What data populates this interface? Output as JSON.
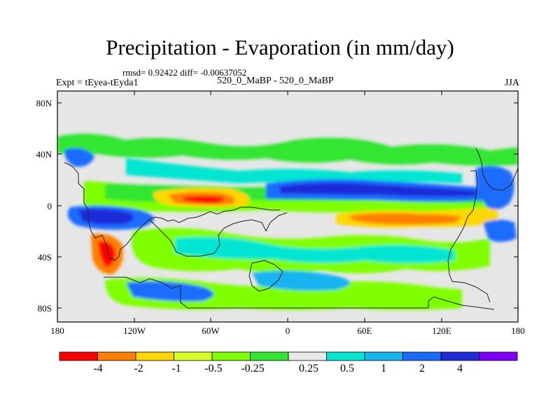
{
  "map": {
    "title": "Precipitation - Evaporation (in mm/day)",
    "stats": "rmsd= 0.92422 diff= -0.00637052",
    "experiment": "Expt = tEyea-tEyda1",
    "comparison": "520_0_MaBP - 520_0_MaBP",
    "season": "JJA",
    "lat_labels": [
      "80N",
      "40N",
      "0",
      "40S",
      "80S"
    ],
    "lon_labels": [
      "180",
      "120W",
      "60W",
      "0",
      "60E",
      "120E",
      "180"
    ]
  },
  "colorbar": {
    "labels": [
      "-4",
      "-2",
      "-1",
      "-0.5",
      "-0.25",
      "0.25",
      "0.5",
      "1",
      "2",
      "4"
    ],
    "colors": [
      "#ff0000",
      "#ff7f00",
      "#ffd700",
      "#d7ff2a",
      "#7fff00",
      "#33e633",
      "#e8e8e8",
      "#00e6d2",
      "#18b4f0",
      "#1a6cff",
      "#1e2cd8",
      "#8000ff"
    ]
  }
}
